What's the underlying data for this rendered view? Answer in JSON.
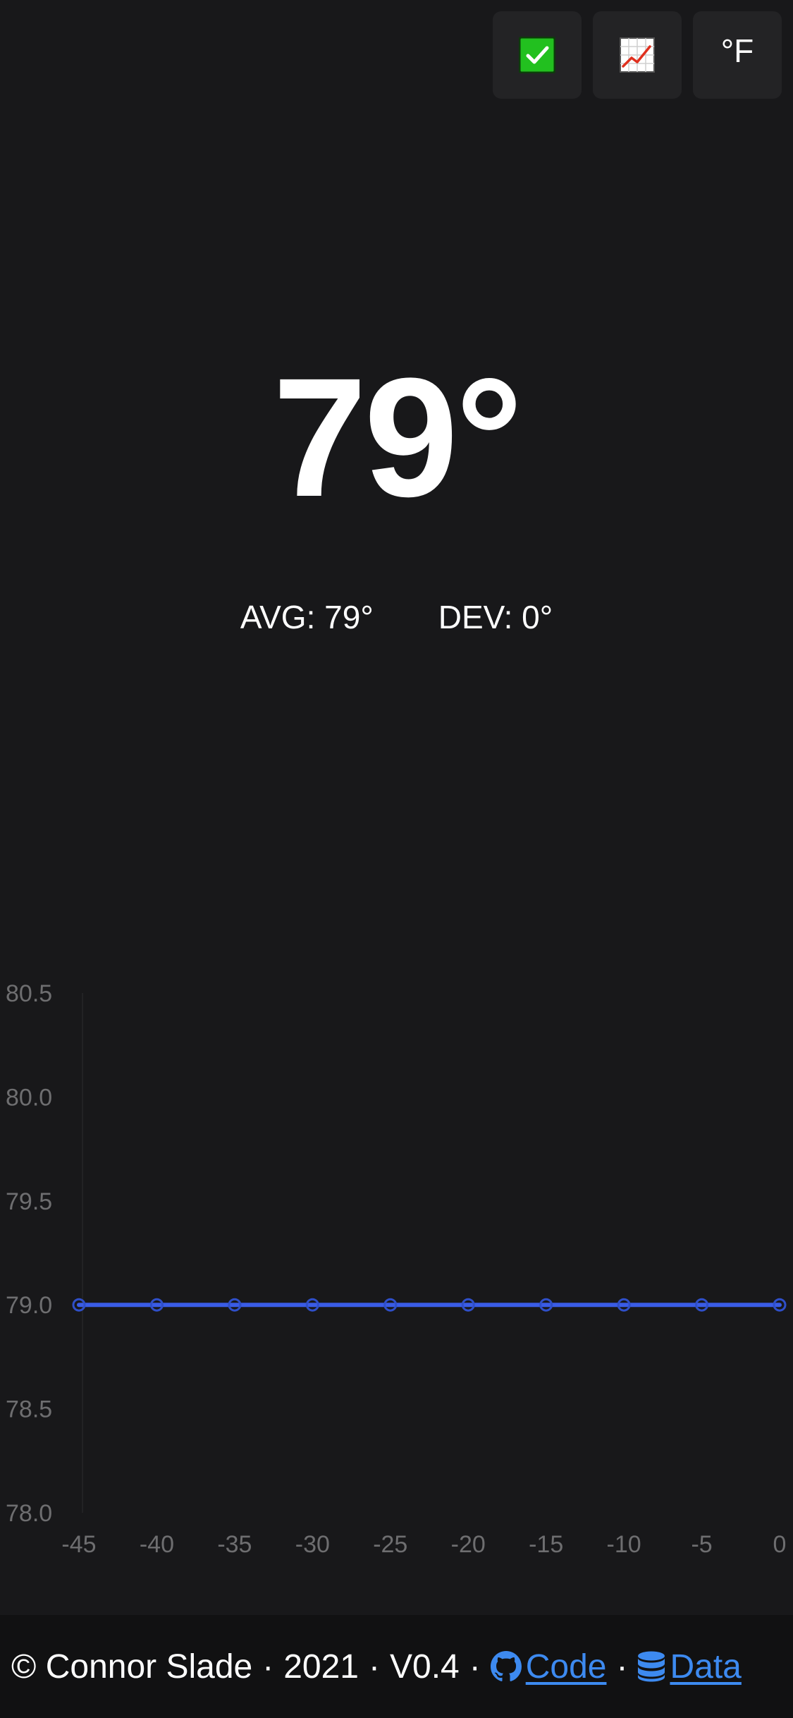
{
  "toolbar": {
    "status_icon": "check-mark-icon",
    "status_color": "#22c01f",
    "chart_icon": "chart-increasing-icon",
    "unit_label": "°F"
  },
  "reading": {
    "temperature": "79°",
    "avg_label": "AVG: 79°",
    "dev_label": "DEV: 0°"
  },
  "chart_data": {
    "type": "line",
    "x": [
      -45,
      -40,
      -35,
      -30,
      -25,
      -20,
      -15,
      -10,
      -5,
      0
    ],
    "series": [
      {
        "values": [
          79,
          79,
          79,
          79,
          79,
          79,
          79,
          79,
          79,
          79
        ],
        "color": "#3a5ce6"
      }
    ],
    "x_tick_labels": [
      "-45",
      "-40",
      "-35",
      "-30",
      "-25",
      "-20",
      "-15",
      "-10",
      "-5",
      "0"
    ],
    "y_tick_labels": [
      "80.5",
      "80.0",
      "79.5",
      "79.0",
      "78.5",
      "78.0"
    ],
    "y_ticks": [
      80.5,
      80.0,
      79.5,
      79.0,
      78.5,
      78.0
    ],
    "ylim": [
      78.0,
      80.5
    ],
    "xlim": [
      -45,
      0
    ],
    "grid": false,
    "legend": "none"
  },
  "footer": {
    "copyright": "© Connor Slade",
    "year": "2021",
    "version": "V0.4",
    "sep": "·",
    "code_link": "Code",
    "data_link": "Data",
    "link_color": "#3d8af0"
  }
}
